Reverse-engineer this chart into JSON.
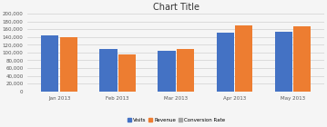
{
  "title": "Chart Title",
  "categories": [
    "Jan 2013",
    "Feb 2013",
    "Mar 2013",
    "Apr 2013",
    "May 2013"
  ],
  "visits": [
    145000,
    110000,
    105000,
    152000,
    153000
  ],
  "revenue": [
    140000,
    95000,
    108000,
    170000,
    167000
  ],
  "conversion_rate": [
    0,
    0,
    0,
    0,
    0
  ],
  "bar_colors": {
    "visits": "#4472c4",
    "revenue": "#ed7d31",
    "conversion_rate": "#a5a5a5"
  },
  "ylim": [
    0,
    200000
  ],
  "yticks": [
    0,
    20000,
    40000,
    60000,
    80000,
    100000,
    120000,
    140000,
    160000,
    180000,
    200000
  ],
  "legend_labels": [
    "Visits",
    "Revenue",
    "Conversion Rate"
  ],
  "background_color": "#f5f5f5",
  "title_fontsize": 7,
  "tick_fontsize": 4,
  "legend_fontsize": 4
}
